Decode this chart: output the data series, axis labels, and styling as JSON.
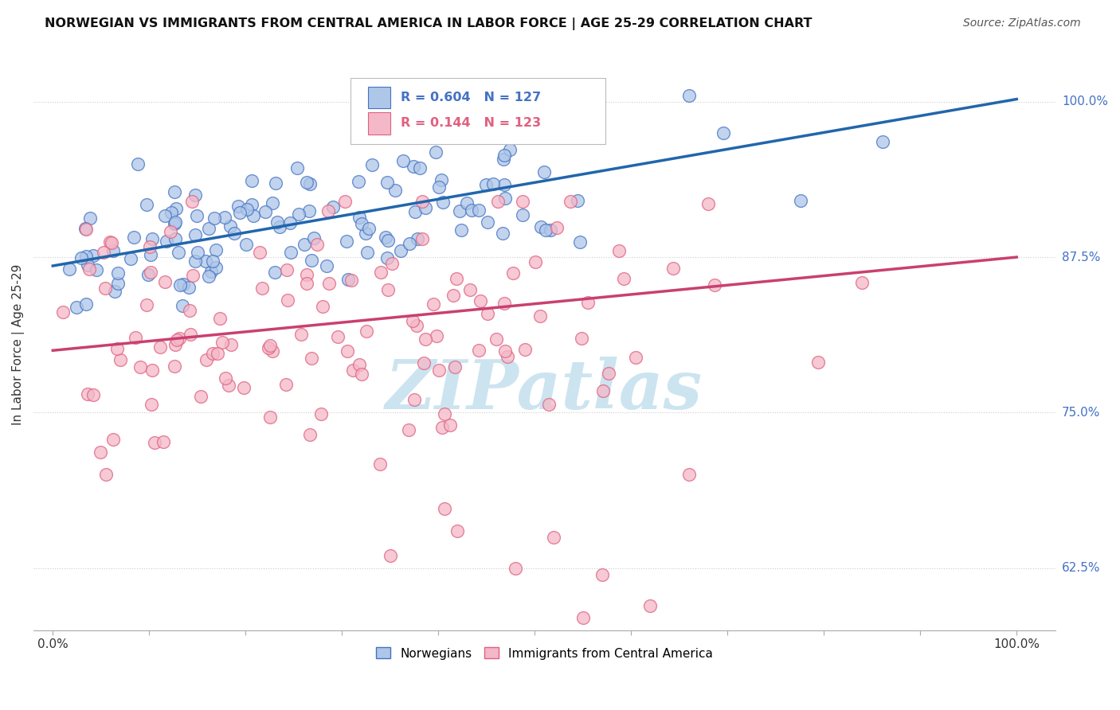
{
  "title": "NORWEGIAN VS IMMIGRANTS FROM CENTRAL AMERICA IN LABOR FORCE | AGE 25-29 CORRELATION CHART",
  "source": "Source: ZipAtlas.com",
  "ylabel": "In Labor Force | Age 25-29",
  "xlim": [
    -0.02,
    1.04
  ],
  "ylim": [
    0.575,
    1.035
  ],
  "ytick_positions": [
    0.625,
    0.75,
    0.875,
    1.0
  ],
  "ytick_labels": [
    "62.5%",
    "75.0%",
    "87.5%",
    "100.0%"
  ],
  "xtick_positions": [
    0.0,
    0.1,
    0.2,
    0.3,
    0.4,
    0.5,
    0.6,
    0.7,
    0.8,
    0.9,
    1.0
  ],
  "xtick_edge_labels": [
    "0.0%",
    "100.0%"
  ],
  "blue_R": 0.604,
  "blue_N": 127,
  "pink_R": 0.144,
  "pink_N": 123,
  "blue_face_color": "#aec6e8",
  "blue_edge_color": "#4472c4",
  "pink_face_color": "#f4b8c8",
  "pink_edge_color": "#e0607e",
  "line_blue_color": "#2166ac",
  "line_pink_color": "#c94070",
  "legend_blue_label": "Norwegians",
  "legend_pink_label": "Immigrants from Central America",
  "watermark_text": "ZIPatlas",
  "watermark_color": "#cce4f0",
  "blue_line_start_y": 0.868,
  "blue_line_end_y": 1.002,
  "pink_line_start_y": 0.8,
  "pink_line_end_y": 0.875,
  "grid_color": "#cccccc",
  "title_fontsize": 11.5,
  "source_fontsize": 10,
  "tick_label_fontsize": 11,
  "ylabel_fontsize": 11,
  "legend_fontsize": 11
}
